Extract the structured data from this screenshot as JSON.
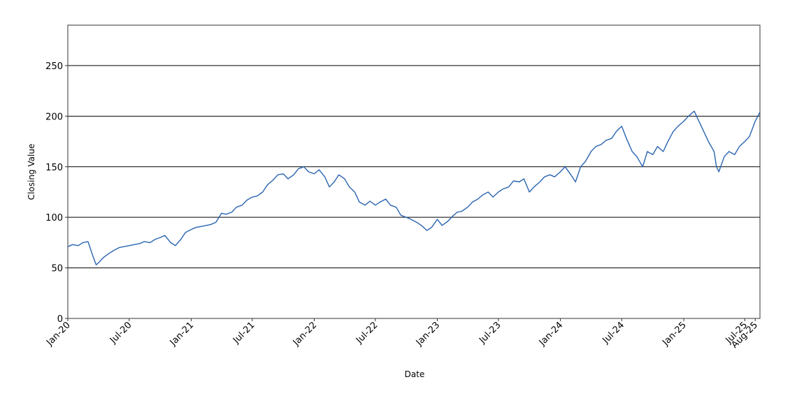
{
  "chart_data": {
    "type": "line",
    "title": "",
    "xlabel": "Date",
    "ylabel": "Closing Value",
    "ylim": [
      0,
      290
    ],
    "yticks": [
      0,
      50,
      100,
      150,
      200,
      250
    ],
    "xlim": [
      "2020-01-01",
      "2025-08-15"
    ],
    "xticks": [
      {
        "date": "2020-01-01",
        "label": "Jan-20"
      },
      {
        "date": "2020-07-01",
        "label": "Jul-20"
      },
      {
        "date": "2021-01-01",
        "label": "Jan-21"
      },
      {
        "date": "2021-07-01",
        "label": "Jul-21"
      },
      {
        "date": "2022-01-01",
        "label": "Jan-22"
      },
      {
        "date": "2022-07-01",
        "label": "Jul-22"
      },
      {
        "date": "2023-01-01",
        "label": "Jan-23"
      },
      {
        "date": "2023-07-01",
        "label": "Jul-23"
      },
      {
        "date": "2024-01-01",
        "label": "Jan-24"
      },
      {
        "date": "2024-07-01",
        "label": "Jul-24"
      },
      {
        "date": "2025-01-01",
        "label": "Jan-25"
      },
      {
        "date": "2025-07-01",
        "label": "Jul-25"
      },
      {
        "date": "2025-08-01",
        "label": "Aug-25"
      }
    ],
    "grid": "horizontal",
    "line_color": "#2a64b0",
    "series": [
      {
        "x": [
          "2020-01-01",
          "2020-01-15",
          "2020-02-01",
          "2020-02-15",
          "2020-03-01",
          "2020-03-15",
          "2020-03-25",
          "2020-04-01",
          "2020-04-15",
          "2020-05-01",
          "2020-05-15",
          "2020-06-01",
          "2020-06-15",
          "2020-07-01",
          "2020-07-15",
          "2020-08-01",
          "2020-08-15",
          "2020-09-01",
          "2020-09-15",
          "2020-10-01",
          "2020-10-15",
          "2020-11-01",
          "2020-11-15",
          "2020-12-01",
          "2020-12-15",
          "2021-01-01",
          "2021-01-15",
          "2021-02-01",
          "2021-02-15",
          "2021-03-01",
          "2021-03-15",
          "2021-04-01",
          "2021-04-15",
          "2021-05-01",
          "2021-05-15",
          "2021-06-01",
          "2021-06-15",
          "2021-07-01",
          "2021-07-15",
          "2021-08-01",
          "2021-08-15",
          "2021-09-01",
          "2021-09-15",
          "2021-10-01",
          "2021-10-15",
          "2021-11-01",
          "2021-11-15",
          "2021-12-01",
          "2021-12-15",
          "2022-01-01",
          "2022-01-15",
          "2022-02-01",
          "2022-02-15",
          "2022-03-01",
          "2022-03-15",
          "2022-04-01",
          "2022-04-15",
          "2022-05-01",
          "2022-05-15",
          "2022-06-01",
          "2022-06-15",
          "2022-07-01",
          "2022-07-15",
          "2022-08-01",
          "2022-08-15",
          "2022-09-01",
          "2022-09-15",
          "2022-10-01",
          "2022-10-15",
          "2022-11-01",
          "2022-11-15",
          "2022-12-01",
          "2022-12-15",
          "2023-01-01",
          "2023-01-15",
          "2023-02-01",
          "2023-02-15",
          "2023-03-01",
          "2023-03-15",
          "2023-04-01",
          "2023-04-15",
          "2023-05-01",
          "2023-05-15",
          "2023-06-01",
          "2023-06-15",
          "2023-07-01",
          "2023-07-15",
          "2023-08-01",
          "2023-08-15",
          "2023-09-01",
          "2023-09-15",
          "2023-10-01",
          "2023-10-15",
          "2023-11-01",
          "2023-11-15",
          "2023-12-01",
          "2023-12-15",
          "2024-01-01",
          "2024-01-15",
          "2024-02-01",
          "2024-02-15",
          "2024-03-01",
          "2024-03-15",
          "2024-04-01",
          "2024-04-15",
          "2024-05-01",
          "2024-05-15",
          "2024-06-01",
          "2024-06-15",
          "2024-07-01",
          "2024-07-15",
          "2024-08-01",
          "2024-08-15",
          "2024-09-01",
          "2024-09-15",
          "2024-10-01",
          "2024-10-15",
          "2024-11-01",
          "2024-11-15",
          "2024-12-01",
          "2024-12-15",
          "2025-01-01",
          "2025-01-15",
          "2025-02-01",
          "2025-02-15",
          "2025-03-01",
          "2025-03-15",
          "2025-04-01",
          "2025-04-08",
          "2025-04-15",
          "2025-05-01",
          "2025-05-15",
          "2025-06-01",
          "2025-06-15",
          "2025-07-01",
          "2025-07-15",
          "2025-08-01",
          "2025-08-15"
        ],
        "y": [
          71,
          73,
          72,
          75,
          76,
          62,
          53,
          55,
          60,
          64,
          67,
          70,
          71,
          72,
          73,
          74,
          76,
          75,
          78,
          80,
          82,
          75,
          72,
          78,
          85,
          88,
          90,
          91,
          92,
          93,
          95,
          104,
          103,
          105,
          110,
          112,
          117,
          120,
          121,
          125,
          132,
          137,
          142,
          143,
          138,
          142,
          148,
          150,
          145,
          143,
          147,
          140,
          130,
          135,
          142,
          138,
          130,
          125,
          115,
          112,
          116,
          112,
          115,
          118,
          112,
          110,
          102,
          100,
          98,
          95,
          92,
          87,
          90,
          98,
          92,
          96,
          101,
          105,
          106,
          110,
          115,
          118,
          122,
          125,
          120,
          125,
          128,
          130,
          136,
          135,
          138,
          125,
          130,
          135,
          140,
          142,
          140,
          145,
          150,
          142,
          135,
          150,
          155,
          165,
          170,
          172,
          176,
          178,
          185,
          190,
          178,
          165,
          160,
          150,
          165,
          162,
          170,
          165,
          175,
          185,
          190,
          195,
          200,
          205,
          195,
          185,
          175,
          165,
          150,
          145,
          160,
          165,
          162,
          170,
          175,
          180,
          195,
          204
        ]
      }
    ]
  }
}
